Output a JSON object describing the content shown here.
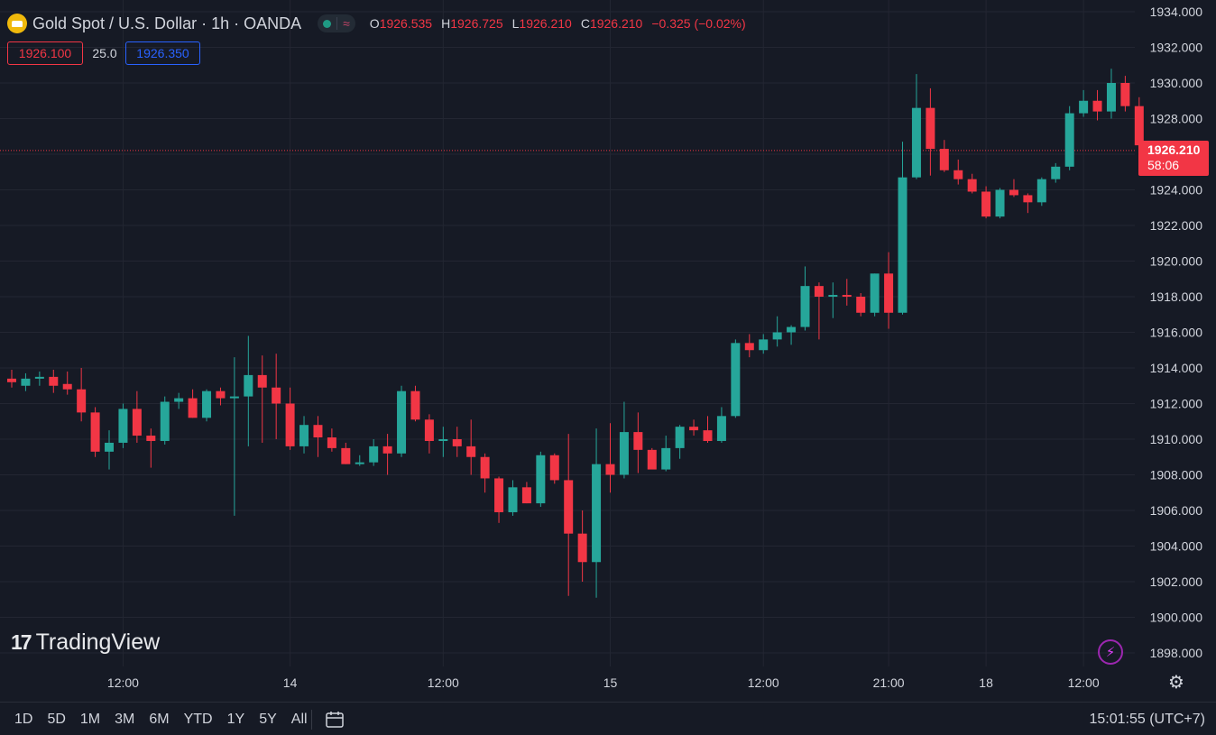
{
  "header": {
    "symbol": "Gold Spot / U.S. Dollar · 1h · OANDA",
    "ohlc": [
      {
        "k": "O",
        "v": "1926.535"
      },
      {
        "k": "H",
        "v": "1926.725"
      },
      {
        "k": "L",
        "v": "1926.210"
      },
      {
        "k": "C",
        "v": "1926.210"
      }
    ],
    "change": "−0.325 (−0.02%)"
  },
  "quote": {
    "bid": "1926.100",
    "spread": "25.0",
    "ask": "1926.350"
  },
  "last_price": {
    "price": "1926.210",
    "countdown": "58:06"
  },
  "logo": {
    "text": "TradingView"
  },
  "ranges": [
    "1D",
    "5D",
    "1M",
    "3M",
    "6M",
    "YTD",
    "1Y",
    "5Y",
    "All"
  ],
  "clock": "15:01:55 (UTC+7)",
  "icons": {
    "status_dot": "market-status-dot",
    "wave": "wave-icon",
    "bolt": "lightning-icon",
    "gear": "settings-icon",
    "calendar": "calendar-icon"
  },
  "colors": {
    "up": "#26a69a",
    "down": "#f23645",
    "background": "#161a25",
    "grid": "#232632",
    "ask": "#2962ff"
  },
  "chart_data": {
    "type": "candlestick",
    "title": "Gold Spot / U.S. Dollar · 1h · OANDA",
    "ylim": [
      1897.0,
      1934.5
    ],
    "y_ticks": [
      "1934.000",
      "1932.000",
      "1930.000",
      "1928.000",
      "1926.000",
      "1924.000",
      "1922.000",
      "1920.000",
      "1918.000",
      "1916.000",
      "1914.000",
      "1912.000",
      "1910.000",
      "1908.000",
      "1906.000",
      "1904.000",
      "1902.000",
      "1900.000",
      "1898.000"
    ],
    "x_ticks": [
      {
        "label": "12:00",
        "index": 8
      },
      {
        "label": "14",
        "index": 20
      },
      {
        "label": "12:00",
        "index": 31
      },
      {
        "label": "15",
        "index": 43
      },
      {
        "label": "12:00",
        "index": 54
      },
      {
        "label": "21:00",
        "index": 63
      },
      {
        "label": "18",
        "index": 70
      },
      {
        "label": "12:00",
        "index": 77
      }
    ],
    "grid": true,
    "last_price": 1926.21,
    "candles": [
      [
        1913.4,
        1913.9,
        1912.9,
        1913.2
      ],
      [
        1913.0,
        1913.7,
        1912.7,
        1913.4
      ],
      [
        1913.4,
        1913.8,
        1913.0,
        1913.5
      ],
      [
        1913.5,
        1913.9,
        1912.6,
        1913.0
      ],
      [
        1913.1,
        1913.8,
        1912.5,
        1912.8
      ],
      [
        1912.8,
        1914.0,
        1911.0,
        1911.5
      ],
      [
        1911.5,
        1911.8,
        1909.0,
        1909.3
      ],
      [
        1909.3,
        1910.5,
        1908.3,
        1909.8
      ],
      [
        1909.8,
        1912.0,
        1909.5,
        1911.7
      ],
      [
        1911.7,
        1912.7,
        1909.8,
        1910.2
      ],
      [
        1910.2,
        1910.6,
        1908.4,
        1909.9
      ],
      [
        1909.9,
        1912.4,
        1909.7,
        1912.1
      ],
      [
        1912.1,
        1912.6,
        1911.7,
        1912.3
      ],
      [
        1912.3,
        1912.8,
        1911.2,
        1911.2
      ],
      [
        1911.2,
        1912.8,
        1911.0,
        1912.7
      ],
      [
        1912.7,
        1912.9,
        1911.9,
        1912.3
      ],
      [
        1912.3,
        1914.6,
        1905.7,
        1912.4
      ],
      [
        1912.4,
        1915.8,
        1909.6,
        1913.6
      ],
      [
        1913.6,
        1914.7,
        1909.8,
        1912.9
      ],
      [
        1912.9,
        1914.8,
        1910.0,
        1912.0
      ],
      [
        1912.0,
        1912.9,
        1909.4,
        1909.6
      ],
      [
        1909.6,
        1911.3,
        1909.2,
        1910.8
      ],
      [
        1910.8,
        1911.3,
        1909.0,
        1910.1
      ],
      [
        1910.1,
        1910.6,
        1909.3,
        1909.5
      ],
      [
        1909.5,
        1909.8,
        1908.6,
        1908.6
      ],
      [
        1908.6,
        1909.1,
        1908.5,
        1908.7
      ],
      [
        1908.7,
        1910.0,
        1908.5,
        1909.6
      ],
      [
        1909.6,
        1910.3,
        1908.0,
        1909.2
      ],
      [
        1909.2,
        1913.0,
        1909.0,
        1912.7
      ],
      [
        1912.7,
        1913.0,
        1911.0,
        1911.1
      ],
      [
        1911.1,
        1911.4,
        1909.2,
        1909.9
      ],
      [
        1909.9,
        1910.7,
        1909.0,
        1910.0
      ],
      [
        1910.0,
        1910.7,
        1909.0,
        1909.6
      ],
      [
        1909.6,
        1911.1,
        1908.0,
        1909.0
      ],
      [
        1909.0,
        1909.2,
        1907.0,
        1907.8
      ],
      [
        1907.8,
        1907.9,
        1905.3,
        1905.9
      ],
      [
        1905.9,
        1907.7,
        1905.7,
        1907.3
      ],
      [
        1907.3,
        1907.6,
        1906.4,
        1906.4
      ],
      [
        1906.4,
        1909.3,
        1906.2,
        1909.1
      ],
      [
        1909.1,
        1909.2,
        1907.5,
        1907.7
      ],
      [
        1907.7,
        1910.3,
        1901.2,
        1904.7
      ],
      [
        1904.7,
        1906.0,
        1902.0,
        1903.1
      ],
      [
        1903.1,
        1910.6,
        1901.1,
        1908.6
      ],
      [
        1908.6,
        1910.9,
        1907.0,
        1908.0
      ],
      [
        1908.0,
        1912.1,
        1907.8,
        1910.4
      ],
      [
        1910.4,
        1911.5,
        1908.1,
        1909.4
      ],
      [
        1909.4,
        1909.5,
        1908.6,
        1908.3
      ],
      [
        1908.3,
        1910.2,
        1908.2,
        1909.5
      ],
      [
        1909.5,
        1910.8,
        1908.9,
        1910.7
      ],
      [
        1910.7,
        1911.1,
        1910.2,
        1910.5
      ],
      [
        1910.5,
        1911.3,
        1909.8,
        1909.9
      ],
      [
        1909.9,
        1911.8,
        1909.8,
        1911.3
      ],
      [
        1911.3,
        1915.6,
        1911.2,
        1915.4
      ],
      [
        1915.4,
        1915.9,
        1914.6,
        1915.0
      ],
      [
        1915.0,
        1915.9,
        1914.8,
        1915.6
      ],
      [
        1915.6,
        1916.9,
        1915.2,
        1916.0
      ],
      [
        1916.0,
        1916.4,
        1915.3,
        1916.3
      ],
      [
        1916.3,
        1919.7,
        1916.1,
        1918.6
      ],
      [
        1918.6,
        1918.8,
        1915.6,
        1918.0
      ],
      [
        1918.0,
        1918.8,
        1916.8,
        1918.1
      ],
      [
        1918.1,
        1919.0,
        1917.5,
        1918.0
      ],
      [
        1918.0,
        1918.2,
        1916.9,
        1917.1
      ],
      [
        1917.1,
        1919.3,
        1916.9,
        1919.3
      ],
      [
        1919.3,
        1920.5,
        1916.2,
        1917.1
      ],
      [
        1917.1,
        1926.7,
        1917.0,
        1924.7
      ],
      [
        1924.7,
        1930.5,
        1924.6,
        1928.6
      ],
      [
        1928.6,
        1929.7,
        1924.8,
        1926.3
      ],
      [
        1926.3,
        1926.8,
        1925.0,
        1925.1
      ],
      [
        1925.1,
        1925.7,
        1924.3,
        1924.6
      ],
      [
        1924.6,
        1924.9,
        1923.8,
        1923.9
      ],
      [
        1923.9,
        1924.2,
        1922.4,
        1922.5
      ],
      [
        1922.5,
        1924.1,
        1922.4,
        1924.0
      ],
      [
        1924.0,
        1924.6,
        1923.6,
        1923.7
      ],
      [
        1923.7,
        1923.8,
        1922.7,
        1923.3
      ],
      [
        1923.3,
        1924.7,
        1923.1,
        1924.6
      ],
      [
        1924.6,
        1925.5,
        1924.4,
        1925.3
      ],
      [
        1925.3,
        1928.7,
        1925.1,
        1928.3
      ],
      [
        1928.3,
        1929.6,
        1928.1,
        1929.0
      ],
      [
        1929.0,
        1929.6,
        1927.9,
        1928.4
      ],
      [
        1928.4,
        1930.8,
        1928.0,
        1930.0
      ],
      [
        1930.0,
        1930.4,
        1928.4,
        1928.7
      ],
      [
        1928.7,
        1929.2,
        1926.1,
        1926.5
      ],
      [
        1926.5,
        1926.7,
        1926.2,
        1926.2
      ]
    ]
  }
}
